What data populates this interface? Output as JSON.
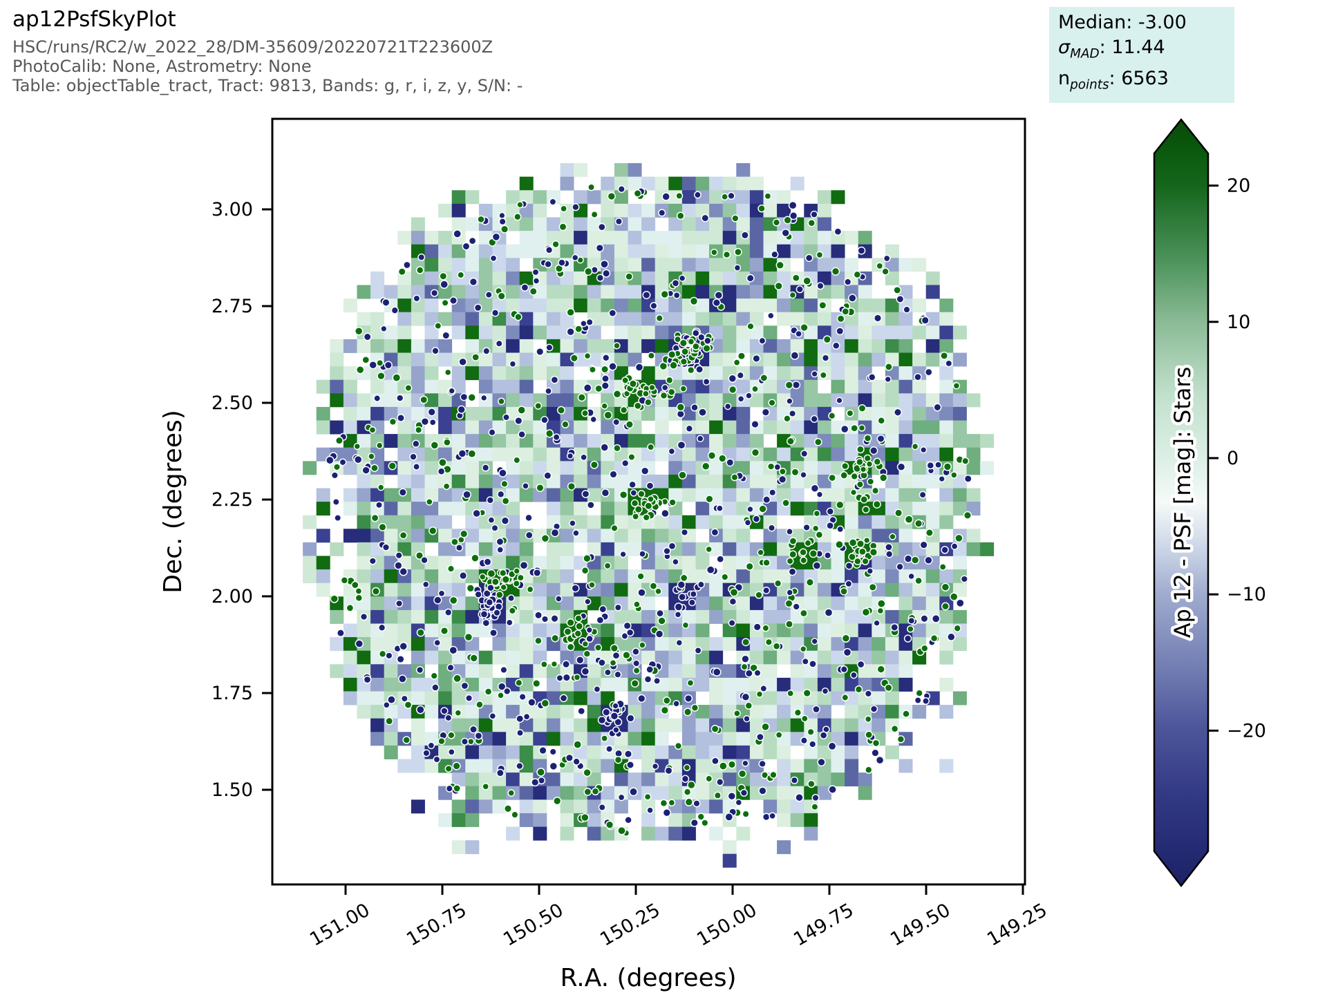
{
  "header": {
    "title": "ap12PsfSkyPlot",
    "subtitle_lines": [
      "HSC/runs/RC2/w_2022_28/DM-35609/20220721T223600Z",
      "PhotoCalib: None, Astrometry: None",
      "Table: objectTable_tract, Tract: 9813, Bands: g, r, i, z, y, S/N: -"
    ]
  },
  "stats_box": {
    "background": "#d9f1ee",
    "median_line": "Median: -3.00",
    "sigma_symbol": "σ",
    "sigma_sub": "MAD",
    "sigma_rest": ": 11.44",
    "n_symbol": "n",
    "n_sub": "points",
    "n_rest": ": 6563"
  },
  "chart_data": {
    "type": "skyplot: 2D binned heatmap with scatter overlay",
    "title": "ap12PsfSkyPlot",
    "xlabel": "R.A. (degrees)",
    "ylabel": "Dec. (degrees)",
    "x_axis_inverted": true,
    "x_range_deg": [
      151.19,
      149.245
    ],
    "y_range_deg": [
      1.255,
      3.234
    ],
    "x_ticks": [
      {
        "value": 151.0,
        "label": "151.00"
      },
      {
        "value": 150.75,
        "label": "150.75"
      },
      {
        "value": 150.5,
        "label": "150.50"
      },
      {
        "value": 150.25,
        "label": "150.25"
      },
      {
        "value": 150.0,
        "label": "150.00"
      },
      {
        "value": 149.75,
        "label": "149.75"
      },
      {
        "value": 149.5,
        "label": "149.50"
      },
      {
        "value": 149.25,
        "label": "149.25"
      }
    ],
    "y_ticks": [
      {
        "value": 3.0,
        "label": "3.00"
      },
      {
        "value": 2.75,
        "label": "2.75"
      },
      {
        "value": 2.5,
        "label": "2.50"
      },
      {
        "value": 2.25,
        "label": "2.25"
      },
      {
        "value": 2.0,
        "label": "2.00"
      },
      {
        "value": 1.75,
        "label": "1.75"
      },
      {
        "value": 1.5,
        "label": "1.50"
      }
    ],
    "stats": {
      "median": -3.0,
      "sigma_mad": 11.44,
      "n_points": 6563
    },
    "colorbar": {
      "label": "Ap 12 - PSF [mag]: Stars",
      "extend": "both",
      "vmin": -28.9,
      "vmax": 22.4,
      "ticks": [
        {
          "value": 20,
          "label": "20"
        },
        {
          "value": 10,
          "label": "10"
        },
        {
          "value": 0,
          "label": "0"
        },
        {
          "value": -10,
          "label": "−10"
        },
        {
          "value": -20,
          "label": "−20"
        }
      ],
      "gradient": [
        {
          "o": 0.0,
          "c": "#084a08"
        },
        {
          "o": 0.045,
          "c": "#0b5a0f"
        },
        {
          "o": 0.086,
          "c": "#15661c"
        },
        {
          "o": 0.18,
          "c": "#4a9158"
        },
        {
          "o": 0.264,
          "c": "#8abb96"
        },
        {
          "o": 0.36,
          "c": "#c2e0cd"
        },
        {
          "o": 0.442,
          "c": "#dcefe6"
        },
        {
          "o": 0.499,
          "c": "#f6faf8"
        },
        {
          "o": 0.56,
          "c": "#ccd5e7"
        },
        {
          "o": 0.62,
          "c": "#9fabce"
        },
        {
          "o": 0.72,
          "c": "#707bb1"
        },
        {
          "o": 0.797,
          "c": "#4c5499"
        },
        {
          "o": 0.88,
          "c": "#333a85"
        },
        {
          "o": 0.955,
          "c": "#242a72"
        },
        {
          "o": 1.0,
          "c": "#1d2264"
        }
      ]
    },
    "footprint": {
      "center_ra": 150.218,
      "center_dec": 2.227,
      "half_width_deg": 0.853,
      "half_height_deg": 0.868,
      "superellipse_exponent": 2.5,
      "shape": "rounded-square tract footprint with ragged bin edges"
    },
    "bins": {
      "bin_size_deg": 0.035,
      "hole_probability": 0.05,
      "cluster_dark_green": "#116b11",
      "cluster_dark_navy": "#272c7b",
      "palette": [
        {
          "c": "#dff0ee",
          "w": 12
        },
        {
          "c": "#ddefe0",
          "w": 12
        },
        {
          "c": "#cfe9d6",
          "w": 10
        },
        {
          "c": "#b8dcc1",
          "w": 9
        },
        {
          "c": "#97c7a4",
          "w": 7
        },
        {
          "c": "#6fae7e",
          "w": 5
        },
        {
          "c": "#3c8c4a",
          "w": 3
        },
        {
          "c": "#116b11",
          "w": 4
        },
        {
          "c": "#ccd9ec",
          "w": 10
        },
        {
          "c": "#b3c0de",
          "w": 9
        },
        {
          "c": "#96a4cc",
          "w": 7
        },
        {
          "c": "#7c8abc",
          "w": 5
        },
        {
          "c": "#5a66a4",
          "w": 3.5
        },
        {
          "c": "#3a4190",
          "w": 2.5
        },
        {
          "c": "#272c7b",
          "w": 3
        }
      ]
    },
    "points": {
      "single_count": 960,
      "cluster_count": 14,
      "cluster_size_range": [
        8,
        26
      ],
      "cluster_green_fraction": 0.62,
      "green_fraction": 0.44,
      "green_color": "#0c6e0c",
      "navy_color": "#1b2173",
      "edge_color": "#ffffff"
    },
    "render": {
      "seed": 20220721
    }
  }
}
